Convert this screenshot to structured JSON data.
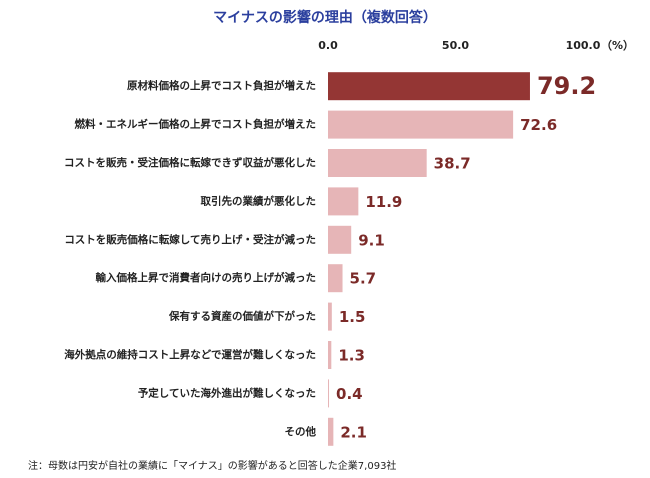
{
  "chart_data": {
    "type": "hbar",
    "title": "マイナスの影響の理由（複数回答）",
    "unit_label": "（%）",
    "categories": [
      "原材料価格の上昇でコスト負担が増えた",
      "燃料・エネルギー価格の上昇でコスト負担が増えた",
      "コストを販売・受注価格に転嫁できず収益が悪化した",
      "取引先の業績が悪化した",
      "コストを販売価格に転嫁して売り上げ・受注が減った",
      "輸入価格上昇で消費者向けの売り上げが減った",
      "保有する資産の価値が下がった",
      "海外拠点の維持コスト上昇などで運営が難しくなった",
      "予定していた海外進出が難しくなった",
      "その他"
    ],
    "values": [
      79.2,
      72.6,
      38.7,
      11.9,
      9.1,
      5.7,
      1.5,
      1.3,
      0.4,
      2.1
    ],
    "colors": [
      "#943634",
      "#e6b5b7",
      "#e6b5b7",
      "#e6b5b7",
      "#e6b5b7",
      "#e6b5b7",
      "#e6b5b7",
      "#e6b5b7",
      "#e6b5b7",
      "#e6b5b7"
    ],
    "label_color": "#7b2a28",
    "xlim": [
      0,
      100
    ],
    "xticks": [
      {
        "value": 0,
        "label": "0.0"
      },
      {
        "value": 50,
        "label": "50.0"
      },
      {
        "value": 100,
        "label": "100.0"
      }
    ],
    "grid": false,
    "note": "注：母数は円安が自社の業績に「マイナス」の影響があると回答した企業7,093社"
  }
}
